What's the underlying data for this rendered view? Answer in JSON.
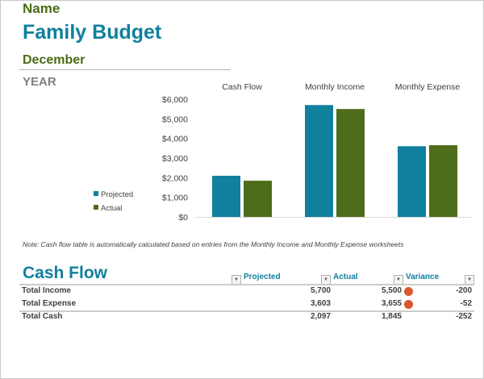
{
  "header": {
    "name": "Name",
    "title": "Family Budget",
    "month": "December",
    "year": "YEAR"
  },
  "chart_data": {
    "type": "bar",
    "categories": [
      "Cash Flow",
      "Monthly Income",
      "Monthly Expense"
    ],
    "series": [
      {
        "name": "Projected",
        "values": [
          2097,
          5700,
          3603
        ],
        "color": "#10809e"
      },
      {
        "name": "Actual",
        "values": [
          1845,
          5500,
          3655
        ],
        "color": "#4e6d1b"
      }
    ],
    "yticks": [
      "$0",
      "$1,000",
      "$2,000",
      "$3,000",
      "$4,000",
      "$5,000",
      "$6,000"
    ],
    "ylim": [
      0,
      6000
    ],
    "legend": "left",
    "grid": false
  },
  "note": "Note: Cash flow table is automatically calculated based on entries from the Monthly Income and Monthly Expense worksheets",
  "table": {
    "title": "Cash Flow",
    "columns": [
      "Projected",
      "Actual",
      "Variance"
    ],
    "rows": [
      {
        "label": "Total Income",
        "projected": "5,700",
        "actual": "5,500",
        "variance": "-200",
        "flag": true
      },
      {
        "label": "Total Expense",
        "projected": "3,603",
        "actual": "3,655",
        "variance": "-52",
        "flag": true
      },
      {
        "label": "Total Cash",
        "projected": "2,097",
        "actual": "1,845",
        "variance": "-252",
        "flag": false
      }
    ],
    "flag_color": "#d9572a"
  }
}
